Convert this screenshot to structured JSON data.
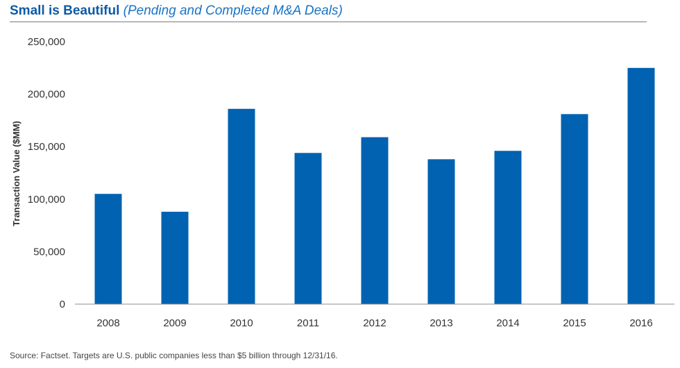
{
  "header": {
    "title": "Small is Beautiful",
    "subtitle": "(Pending and Completed M&A Deals)"
  },
  "footer": {
    "source": "Source: Factset. Targets are U.S. public companies less than $5 billion through 12/31/16."
  },
  "colors": {
    "bar": "#0062b1",
    "title": "#0d5aa7",
    "subtitle": "#1a73c5"
  },
  "chart_data": {
    "type": "bar",
    "title": "Small is Beautiful",
    "subtitle": "(Pending and Completed M&A Deals)",
    "xlabel": "",
    "ylabel": "Transaction Value  ($MM)",
    "categories": [
      "2008",
      "2009",
      "2010",
      "2011",
      "2012",
      "2013",
      "2014",
      "2015",
      "2016"
    ],
    "values": [
      105000,
      88000,
      186000,
      144000,
      159000,
      138000,
      146000,
      181000,
      225000
    ],
    "ylim": [
      0,
      250000
    ],
    "yticks": [
      0,
      50000,
      100000,
      150000,
      200000,
      250000
    ],
    "ytick_labels": [
      "0",
      "50,000",
      "100,000",
      "150,000",
      "200,000",
      "250,000"
    ],
    "grid": false,
    "legend": "none"
  }
}
